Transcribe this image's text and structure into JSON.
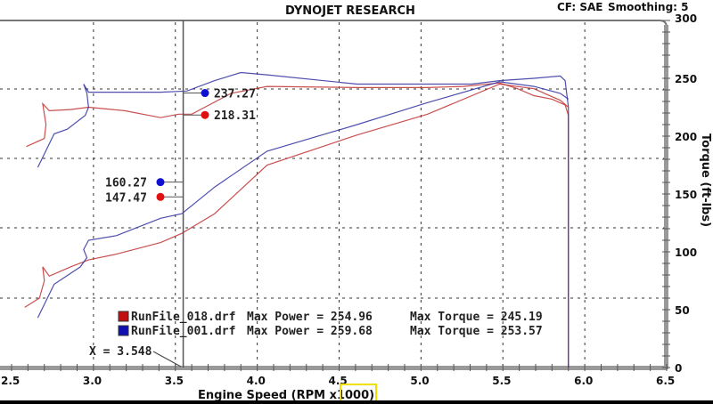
{
  "header": {
    "title": "DYNOJET RESEARCH",
    "cf": "CF: SAE",
    "smoothing": "Smoothing: 5"
  },
  "chart_data": {
    "type": "line",
    "title": "DYNOJET RESEARCH",
    "xlabel": "Engine Speed (RPM x1000)",
    "ylabel": "Torque (ft-lbs)",
    "xlim": [
      2.5,
      6.5
    ],
    "ylim": [
      0,
      300
    ],
    "xticks": [
      "2.5",
      "3.0",
      "3.5",
      "4.0",
      "4.5",
      "5.0",
      "5.5",
      "6.0",
      "6.5"
    ],
    "yticks": [
      "0",
      "50",
      "100",
      "150",
      "200",
      "250",
      "300"
    ],
    "grid": true,
    "cursor": {
      "label": "X = 3.548",
      "x": 3.548
    },
    "series": [
      {
        "name": "RunFile_018.drf",
        "kind": "torque",
        "color": "#c03030",
        "points": [
          [
            2.59,
            191
          ],
          [
            2.7,
            198
          ],
          [
            2.71,
            210
          ],
          [
            2.7,
            219
          ],
          [
            2.69,
            228
          ],
          [
            2.73,
            222
          ],
          [
            2.86,
            223
          ],
          [
            2.97,
            225
          ],
          [
            3.19,
            222
          ],
          [
            3.41,
            216
          ],
          [
            3.52,
            219
          ],
          [
            3.6,
            219
          ],
          [
            3.68,
            225
          ],
          [
            3.84,
            237
          ],
          [
            4.06,
            243
          ],
          [
            4.61,
            242
          ],
          [
            5.04,
            242
          ],
          [
            5.26,
            243
          ],
          [
            5.48,
            246
          ],
          [
            5.59,
            241
          ],
          [
            5.69,
            235
          ],
          [
            5.8,
            232
          ],
          [
            5.88,
            227
          ],
          [
            5.9,
            218
          ],
          [
            5.9,
            0
          ]
        ]
      },
      {
        "name": "RunFile_001.drf",
        "kind": "torque",
        "color": "#3030a0",
        "points": [
          [
            2.66,
            173
          ],
          [
            2.76,
            202
          ],
          [
            2.84,
            206
          ],
          [
            2.95,
            218
          ],
          [
            2.97,
            225
          ],
          [
            2.96,
            237
          ],
          [
            2.94,
            245
          ],
          [
            2.97,
            238
          ],
          [
            3.19,
            238
          ],
          [
            3.41,
            238
          ],
          [
            3.57,
            239
          ],
          [
            3.74,
            248
          ],
          [
            3.9,
            255
          ],
          [
            4.06,
            253
          ],
          [
            4.61,
            245
          ],
          [
            5.04,
            245
          ],
          [
            5.31,
            245
          ],
          [
            5.48,
            248
          ],
          [
            5.69,
            250
          ],
          [
            5.85,
            252
          ],
          [
            5.88,
            248
          ],
          [
            5.9,
            225
          ],
          [
            5.9,
            0
          ]
        ]
      },
      {
        "name": "RunFile_018.drf",
        "kind": "power",
        "color": "#c03030",
        "points": [
          [
            2.58,
            52
          ],
          [
            2.67,
            60
          ],
          [
            2.7,
            75
          ],
          [
            2.69,
            87
          ],
          [
            2.73,
            79
          ],
          [
            2.86,
            87
          ],
          [
            2.97,
            93
          ],
          [
            3.14,
            98
          ],
          [
            3.41,
            108
          ],
          [
            3.54,
            116
          ],
          [
            3.74,
            133
          ],
          [
            4.06,
            175
          ],
          [
            4.61,
            201
          ],
          [
            5.04,
            219
          ],
          [
            5.48,
            245
          ],
          [
            5.69,
            241
          ],
          [
            5.85,
            231
          ],
          [
            5.9,
            225
          ]
        ]
      },
      {
        "name": "RunFile_001.drf",
        "kind": "power",
        "color": "#3030a0",
        "points": [
          [
            2.66,
            43
          ],
          [
            2.76,
            72
          ],
          [
            2.92,
            87
          ],
          [
            2.96,
            95
          ],
          [
            2.94,
            102
          ],
          [
            2.97,
            110
          ],
          [
            3.14,
            114
          ],
          [
            3.41,
            129
          ],
          [
            3.54,
            133
          ],
          [
            3.74,
            156
          ],
          [
            4.06,
            187
          ],
          [
            4.61,
            210
          ],
          [
            5.04,
            229
          ],
          [
            5.48,
            247
          ],
          [
            5.69,
            243
          ],
          [
            5.85,
            237
          ],
          [
            5.9,
            232
          ]
        ]
      }
    ],
    "cursor_values": [
      {
        "value": 237.27,
        "text": "237.27",
        "color": "#1010d0",
        "side": "right"
      },
      {
        "value": 218.31,
        "text": "218.31",
        "color": "#e01010",
        "side": "right"
      },
      {
        "value": 160.27,
        "text": "160.27",
        "color": "#1010d0",
        "side": "left"
      },
      {
        "value": 147.47,
        "text": "147.47",
        "color": "#e01010",
        "side": "left"
      }
    ],
    "legend": [
      {
        "file": "RunFile_018.drf",
        "power": "Max Power = 254.96",
        "torque": "Max Torque = 245.19",
        "color": "#c01010"
      },
      {
        "file": "RunFile_001.drf",
        "power": "Max Power = 259.68",
        "torque": "Max Torque = 253.57",
        "color": "#1010b0"
      }
    ]
  }
}
